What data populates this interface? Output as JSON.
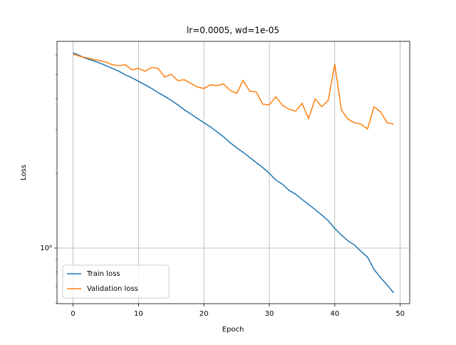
{
  "chart_data": {
    "type": "line",
    "title": "lr=0.0005, wd=1e-05",
    "xlabel": "Epoch",
    "ylabel": "Loss",
    "x": [
      0,
      1,
      2,
      3,
      4,
      5,
      6,
      7,
      8,
      9,
      10,
      11,
      12,
      13,
      14,
      15,
      16,
      17,
      18,
      19,
      20,
      21,
      22,
      23,
      24,
      25,
      26,
      27,
      28,
      29,
      30,
      31,
      32,
      33,
      34,
      35,
      36,
      37,
      38,
      39,
      40,
      41,
      42,
      43,
      44,
      45,
      46,
      47,
      48,
      49
    ],
    "series": [
      {
        "name": "Train loss",
        "color": "#1f77b4",
        "values": [
          6.13,
          5.97,
          5.81,
          5.7,
          5.58,
          5.44,
          5.3,
          5.16,
          4.99,
          4.86,
          4.7,
          4.55,
          4.4,
          4.23,
          4.09,
          3.94,
          3.78,
          3.61,
          3.47,
          3.33,
          3.2,
          3.08,
          2.94,
          2.81,
          2.66,
          2.54,
          2.43,
          2.32,
          2.21,
          2.11,
          2.0,
          1.88,
          1.81,
          1.71,
          1.65,
          1.57,
          1.5,
          1.43,
          1.36,
          1.29,
          1.2,
          1.13,
          1.07,
          1.03,
          0.97,
          0.92,
          0.82,
          0.76,
          0.71,
          0.66
        ]
      },
      {
        "name": "Validation loss",
        "color": "#ff7f0e",
        "values": [
          6.05,
          5.93,
          5.85,
          5.77,
          5.7,
          5.62,
          5.48,
          5.44,
          5.48,
          5.23,
          5.3,
          5.16,
          5.34,
          5.3,
          4.89,
          5.02,
          4.73,
          4.77,
          4.61,
          4.46,
          4.4,
          4.55,
          4.52,
          4.58,
          4.32,
          4.2,
          4.73,
          4.29,
          4.26,
          3.8,
          3.78,
          4.07,
          3.76,
          3.63,
          3.56,
          3.83,
          3.33,
          3.99,
          3.71,
          3.94,
          5.51,
          3.61,
          3.31,
          3.2,
          3.16,
          3.02,
          3.71,
          3.54,
          3.2,
          3.16
        ]
      }
    ],
    "xlim": [
      -2.45,
      51.45
    ],
    "xticks": [
      0,
      10,
      20,
      30,
      40,
      50
    ],
    "ylim": [
      0.597,
      6.81
    ],
    "yscale": "log",
    "yticks": [
      {
        "value": 1,
        "label": "10⁰"
      }
    ],
    "yminorticks": [
      0.6,
      0.7,
      0.8,
      0.9,
      2,
      3,
      4,
      5,
      6
    ],
    "grid": true,
    "legend": "lower left"
  }
}
